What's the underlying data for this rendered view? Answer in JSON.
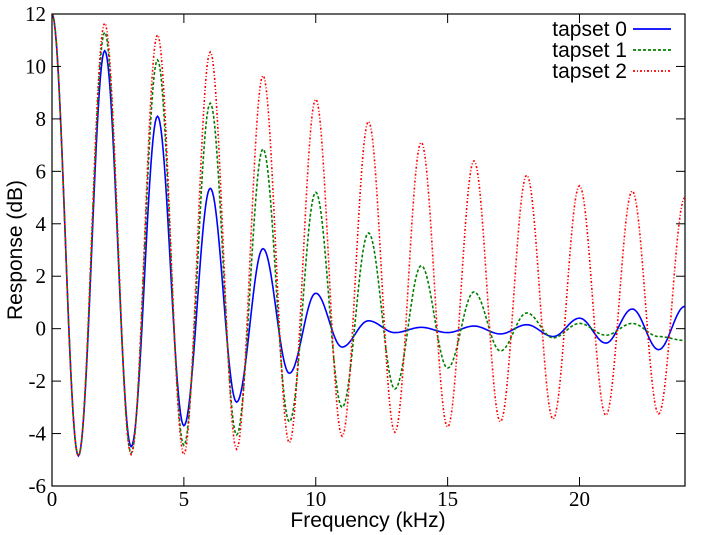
{
  "chart_data": {
    "type": "line",
    "title": "",
    "xlabel": "Frequency (kHz)",
    "ylabel": "Response (dB)",
    "xlim": [
      0,
      24
    ],
    "ylim": [
      -6,
      12
    ],
    "x_ticks": [
      0,
      5,
      10,
      15,
      20
    ],
    "x_tick_labels": [
      "0",
      "5",
      "10",
      "15",
      "20"
    ],
    "y_ticks": [
      -6,
      -4,
      -2,
      0,
      2,
      4,
      6,
      8,
      10,
      12
    ],
    "y_tick_labels": [
      "-6",
      "-4",
      "-2",
      "0",
      "2",
      "4",
      "6",
      "8",
      "10",
      "12"
    ],
    "grid": false,
    "legend_position": "top-right",
    "series": [
      {
        "name": "tapset 0",
        "color": "#0000ff",
        "dash": "solid",
        "x": [
          0,
          1,
          2,
          3,
          4,
          5,
          6,
          7,
          8,
          9,
          10,
          11,
          12,
          13,
          14,
          15,
          16,
          17,
          18,
          19,
          20,
          21,
          22,
          23,
          24
        ],
        "y": [
          12,
          -4.85,
          10.6,
          -4.5,
          8.1,
          -3.7,
          5.35,
          -2.8,
          3.05,
          -1.7,
          1.35,
          -0.7,
          0.3,
          -0.15,
          0.05,
          -0.15,
          0.1,
          -0.2,
          0.15,
          -0.3,
          0.4,
          -0.55,
          0.75,
          -0.8,
          0.85
        ]
      },
      {
        "name": "tapset 1",
        "color": "#008000",
        "dash": "dashed",
        "x": [
          0,
          1,
          2,
          3,
          4,
          5,
          6,
          7,
          8,
          9,
          10,
          11,
          12,
          13,
          14,
          15,
          16,
          17,
          18,
          19,
          20,
          21,
          22,
          23,
          24
        ],
        "y": [
          12,
          -4.85,
          11.3,
          -4.75,
          10.25,
          -4.45,
          8.6,
          -4.05,
          6.85,
          -3.55,
          5.2,
          -3.0,
          3.65,
          -2.3,
          2.4,
          -1.5,
          1.4,
          -0.85,
          0.6,
          -0.35,
          0.2,
          -0.25,
          0.2,
          -0.3,
          -0.45
        ]
      },
      {
        "name": "tapset 2",
        "color": "#ff0000",
        "dash": "dotted",
        "x": [
          0,
          1,
          2,
          3,
          4,
          5,
          6,
          7,
          8,
          9,
          10,
          11,
          12,
          13,
          14,
          15,
          16,
          17,
          18,
          19,
          20,
          21,
          22,
          23,
          24
        ],
        "y": [
          12,
          -4.85,
          11.65,
          -4.8,
          11.2,
          -4.8,
          10.55,
          -4.6,
          9.65,
          -4.35,
          8.75,
          -4.1,
          7.9,
          -3.95,
          7.1,
          -3.75,
          6.4,
          -3.55,
          5.85,
          -3.45,
          5.45,
          -3.3,
          5.25,
          -3.25,
          5.0
        ]
      }
    ]
  }
}
